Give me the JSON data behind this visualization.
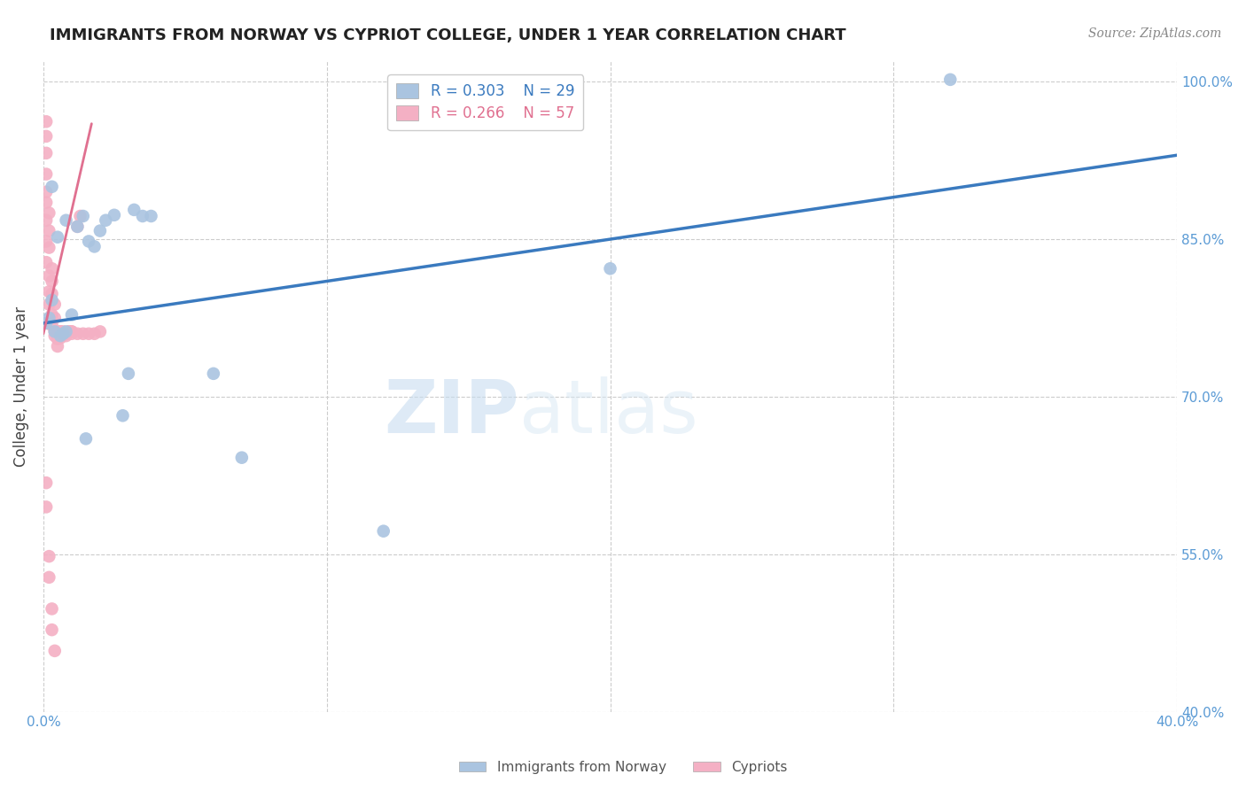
{
  "title": "IMMIGRANTS FROM NORWAY VS CYPRIOT COLLEGE, UNDER 1 YEAR CORRELATION CHART",
  "source": "Source: ZipAtlas.com",
  "ylabel": "College, Under 1 year",
  "xlim": [
    0.0,
    0.4
  ],
  "ylim": [
    0.4,
    1.02
  ],
  "xticks": [
    0.0,
    0.1,
    0.2,
    0.3,
    0.4
  ],
  "xtick_labels": [
    "0.0%",
    "",
    "",
    "",
    "40.0%"
  ],
  "ytick_labels": [
    "40.0%",
    "55.0%",
    "70.0%",
    "85.0%",
    "100.0%"
  ],
  "yticks": [
    0.4,
    0.55,
    0.7,
    0.85,
    1.0
  ],
  "norway_R": "0.303",
  "norway_N": "29",
  "cypriot_R": "0.266",
  "cypriot_N": "57",
  "norway_color": "#aac4e0",
  "cypriot_color": "#f4b0c4",
  "norway_line_color": "#3a7abf",
  "cypriot_line_color": "#e07090",
  "norway_scatter_x": [
    0.001,
    0.002,
    0.003,
    0.004,
    0.006,
    0.007,
    0.008,
    0.01,
    0.012,
    0.014,
    0.016,
    0.018,
    0.02,
    0.022,
    0.025,
    0.028,
    0.03,
    0.032,
    0.035,
    0.038,
    0.06,
    0.07,
    0.12,
    0.2,
    0.32,
    0.003,
    0.005,
    0.008,
    0.015
  ],
  "norway_scatter_y": [
    0.77,
    0.775,
    0.792,
    0.762,
    0.758,
    0.76,
    0.762,
    0.778,
    0.862,
    0.872,
    0.848,
    0.843,
    0.858,
    0.868,
    0.873,
    0.682,
    0.722,
    0.878,
    0.872,
    0.872,
    0.722,
    0.642,
    0.572,
    0.822,
    1.002,
    0.9,
    0.852,
    0.868,
    0.66
  ],
  "cypriot_scatter_x": [
    0.001,
    0.001,
    0.001,
    0.001,
    0.001,
    0.002,
    0.002,
    0.002,
    0.003,
    0.003,
    0.003,
    0.004,
    0.004,
    0.005,
    0.005,
    0.005,
    0.006,
    0.006,
    0.007,
    0.007,
    0.008,
    0.008,
    0.009,
    0.01,
    0.012,
    0.013,
    0.001,
    0.001,
    0.001,
    0.001,
    0.002,
    0.002,
    0.002,
    0.003,
    0.003,
    0.004,
    0.004,
    0.005,
    0.005,
    0.006,
    0.007,
    0.008,
    0.009,
    0.01,
    0.01,
    0.012,
    0.014,
    0.016,
    0.018,
    0.02,
    0.001,
    0.001,
    0.002,
    0.002,
    0.003,
    0.003,
    0.004
  ],
  "cypriot_scatter_y": [
    0.962,
    0.948,
    0.932,
    0.912,
    0.895,
    0.875,
    0.858,
    0.842,
    0.822,
    0.81,
    0.798,
    0.788,
    0.775,
    0.762,
    0.755,
    0.748,
    0.762,
    0.756,
    0.762,
    0.76,
    0.76,
    0.758,
    0.762,
    0.762,
    0.862,
    0.872,
    0.885,
    0.868,
    0.848,
    0.828,
    0.815,
    0.8,
    0.788,
    0.778,
    0.768,
    0.762,
    0.758,
    0.76,
    0.756,
    0.762,
    0.76,
    0.76,
    0.762,
    0.762,
    0.76,
    0.76,
    0.76,
    0.76,
    0.76,
    0.762,
    0.618,
    0.595,
    0.548,
    0.528,
    0.498,
    0.478,
    0.458
  ],
  "norway_trend_x": [
    0.0,
    0.4
  ],
  "norway_trend_y": [
    0.77,
    0.93
  ],
  "cypriot_trend_x": [
    0.0,
    0.017
  ],
  "cypriot_trend_y": [
    0.76,
    0.96
  ],
  "watermark_zip": "ZIP",
  "watermark_atlas": "atlas",
  "background_color": "#ffffff",
  "grid_color": "#cccccc"
}
